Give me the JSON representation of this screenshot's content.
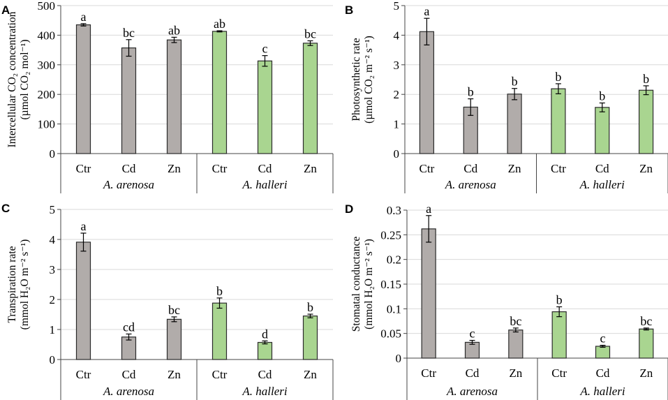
{
  "colors": {
    "arenosa": "#b1acaa",
    "halleri": "#a9d590",
    "grid": "#d9d9d9",
    "edge": "#2b2b2b"
  },
  "chart_data": [
    {
      "type": "bar",
      "panel": "A",
      "ylabel": [
        "Intercellular CO₂ concentration",
        "(µmol CO₂ mol⁻¹)"
      ],
      "ylim": [
        0,
        500
      ],
      "yticks": [
        0,
        100,
        200,
        300,
        400,
        500
      ],
      "ytick_labels": [
        "0",
        "100",
        "200",
        "300",
        "400",
        "500"
      ],
      "categories": [
        "Ctr",
        "Cd",
        "Zn",
        "Ctr",
        "Cd",
        "Zn"
      ],
      "groups": [
        "A. arenosa",
        "A. halleri"
      ],
      "values": [
        435,
        357,
        384,
        413,
        313,
        373
      ],
      "errors": [
        4,
        28,
        9,
        2,
        18,
        8
      ],
      "letters": [
        "a",
        "bc",
        "ab",
        "ab",
        "c",
        "bc"
      ],
      "grid": true
    },
    {
      "type": "bar",
      "panel": "B",
      "ylabel": [
        "Photosynthetic rate",
        "(µmol CO₂ m⁻² s⁻¹)"
      ],
      "ylim": [
        0,
        5
      ],
      "yticks": [
        0,
        1,
        2,
        3,
        4,
        5
      ],
      "ytick_labels": [
        "0",
        "1",
        "2",
        "3",
        "4",
        "5"
      ],
      "categories": [
        "Ctr",
        "Cd",
        "Zn",
        "Ctr",
        "Cd",
        "Zn"
      ],
      "groups": [
        "A. arenosa",
        "A. halleri"
      ],
      "values": [
        4.12,
        1.57,
        2.01,
        2.19,
        1.56,
        2.14
      ],
      "errors": [
        0.45,
        0.28,
        0.19,
        0.17,
        0.15,
        0.15
      ],
      "letters": [
        "a",
        "b",
        "b",
        "b",
        "b",
        "b"
      ],
      "grid": true
    },
    {
      "type": "bar",
      "panel": "C",
      "ylabel": [
        "Transpiration rate",
        "(mmol H₂O m⁻² s⁻¹)"
      ],
      "ylim": [
        0,
        5
      ],
      "yticks": [
        0,
        1,
        2,
        3,
        4,
        5
      ],
      "ytick_labels": [
        "0",
        "1",
        "2",
        "3",
        "4",
        "5"
      ],
      "categories": [
        "Ctr",
        "Cd",
        "Zn",
        "Ctr",
        "Cd",
        "Zn"
      ],
      "groups": [
        "A. arenosa",
        "A. halleri"
      ],
      "values": [
        3.91,
        0.75,
        1.34,
        1.88,
        0.57,
        1.45
      ],
      "errors": [
        0.3,
        0.1,
        0.08,
        0.17,
        0.05,
        0.06
      ],
      "letters": [
        "a",
        "cd",
        "bc",
        "b",
        "d",
        "b"
      ],
      "grid": true
    },
    {
      "type": "bar",
      "panel": "D",
      "ylabel": [
        "Stomatal conductance",
        "(mmol H₂O m⁻² s⁻¹)"
      ],
      "ylim": [
        0,
        0.3
      ],
      "yticks": [
        0,
        0.05,
        0.1,
        0.15,
        0.2,
        0.25,
        0.3
      ],
      "ytick_labels": [
        "0",
        "0.05",
        "0.1",
        "0.15",
        "0.2",
        "0.25",
        "0.3"
      ],
      "categories": [
        "Ctr",
        "Cd",
        "Zn",
        "Ctr",
        "Cd",
        "Zn"
      ],
      "groups": [
        "A. arenosa",
        "A. halleri"
      ],
      "values": [
        0.262,
        0.032,
        0.057,
        0.094,
        0.024,
        0.059
      ],
      "errors": [
        0.027,
        0.004,
        0.004,
        0.01,
        0.002,
        0.002
      ],
      "letters": [
        "a",
        "c",
        "bc",
        "b",
        "c",
        "bc"
      ],
      "grid": true
    }
  ]
}
